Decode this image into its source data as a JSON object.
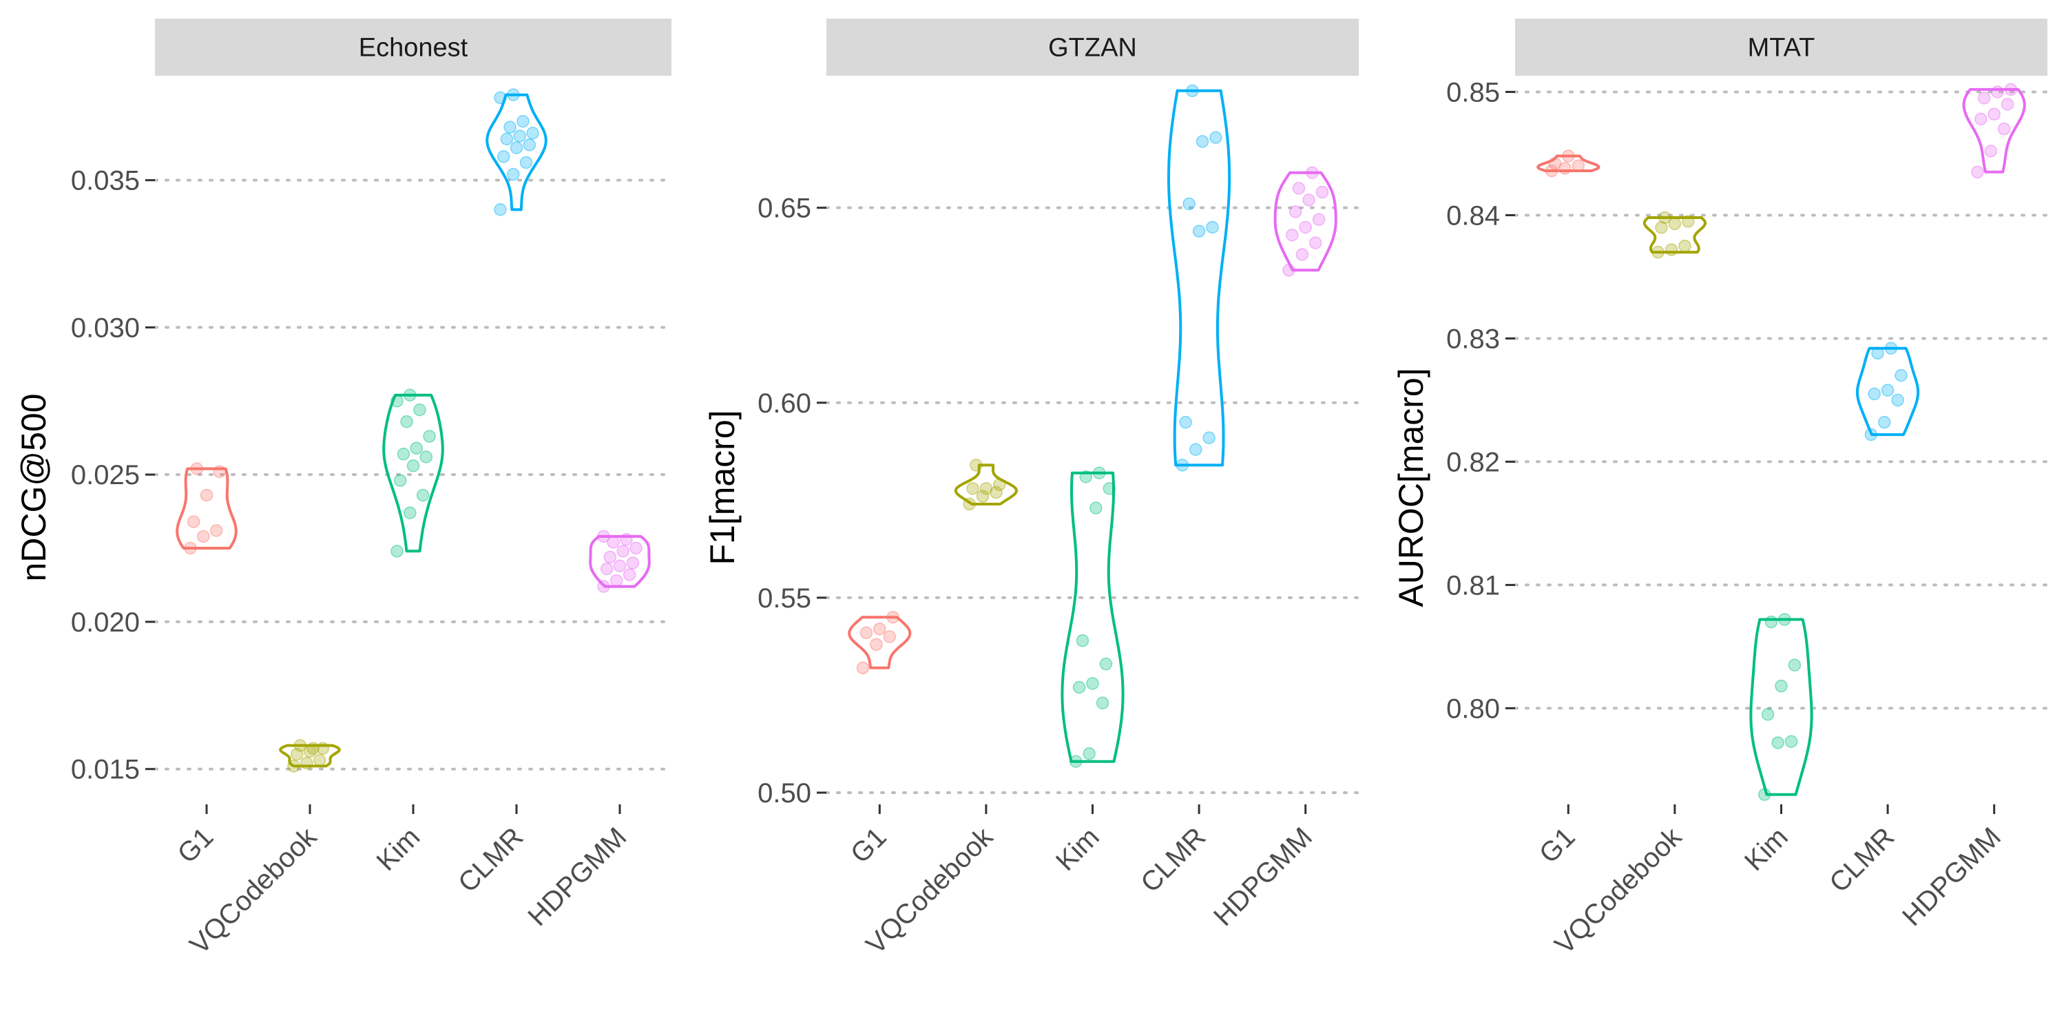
{
  "chart_data": [
    {
      "type": "violin",
      "title": "Echonest",
      "ylabel": "nDCG@500",
      "categories": [
        "G1",
        "VQCodebook",
        "Kim",
        "CLMR",
        "HDPGMM"
      ],
      "ylim": [
        0.0138,
        0.0385
      ],
      "yticks": [
        0.015,
        0.02,
        0.025,
        0.03,
        0.035
      ],
      "ytick_labels": [
        "0.015",
        "0.020",
        "0.025",
        "0.030",
        "0.035"
      ],
      "grid": "horizontal dotted",
      "series": [
        {
          "name": "G1",
          "color": "#F8766D",
          "points": [
            0.0225,
            0.0229,
            0.0231,
            0.0234,
            0.0243,
            0.0251,
            0.0252
          ]
        },
        {
          "name": "VQCodebook",
          "color": "#A3A500",
          "points": [
            0.0151,
            0.0152,
            0.0153,
            0.0155,
            0.0156,
            0.0157,
            0.0158,
            0.0157
          ]
        },
        {
          "name": "Kim",
          "color": "#00BF7D",
          "points": [
            0.0224,
            0.0237,
            0.0243,
            0.0248,
            0.0253,
            0.0256,
            0.0257,
            0.0259,
            0.0263,
            0.0268,
            0.0272,
            0.0275,
            0.0277
          ]
        },
        {
          "name": "CLMR",
          "color": "#00B0F6",
          "points": [
            0.034,
            0.0352,
            0.0356,
            0.0358,
            0.0361,
            0.0362,
            0.0364,
            0.0365,
            0.0366,
            0.0368,
            0.037,
            0.0378,
            0.0379
          ]
        },
        {
          "name": "HDPGMM",
          "color": "#E76BF3",
          "points": [
            0.0212,
            0.0214,
            0.0216,
            0.0218,
            0.0219,
            0.022,
            0.0222,
            0.0224,
            0.0225,
            0.0227,
            0.0228,
            0.0229
          ]
        }
      ]
    },
    {
      "type": "violin",
      "title": "GTZAN",
      "ylabel": "F1[macro]",
      "categories": [
        "G1",
        "VQCodebook",
        "Kim",
        "CLMR",
        "HDPGMM"
      ],
      "ylim": [
        0.497,
        0.6835
      ],
      "yticks": [
        0.5,
        0.55,
        0.6,
        0.65
      ],
      "ytick_labels": [
        "0.50",
        "0.55",
        "0.60",
        "0.65"
      ],
      "grid": "horizontal dotted",
      "series": [
        {
          "name": "G1",
          "color": "#F8766D",
          "points": [
            0.532,
            0.538,
            0.54,
            0.541,
            0.542,
            0.545
          ]
        },
        {
          "name": "VQCodebook",
          "color": "#A3A500",
          "points": [
            0.574,
            0.576,
            0.577,
            0.578,
            0.578,
            0.579,
            0.584
          ]
        },
        {
          "name": "Kim",
          "color": "#00BF7D",
          "points": [
            0.508,
            0.51,
            0.523,
            0.527,
            0.528,
            0.533,
            0.539,
            0.573,
            0.578,
            0.581,
            0.582
          ]
        },
        {
          "name": "CLMR",
          "color": "#00B0F6",
          "points": [
            0.584,
            0.588,
            0.591,
            0.595,
            0.644,
            0.645,
            0.651,
            0.667,
            0.668,
            0.68
          ]
        },
        {
          "name": "HDPGMM",
          "color": "#E76BF3",
          "points": [
            0.634,
            0.638,
            0.641,
            0.643,
            0.645,
            0.647,
            0.649,
            0.652,
            0.654,
            0.655,
            0.659
          ]
        }
      ]
    },
    {
      "type": "violin",
      "title": "MTAT",
      "ylabel": "AUROC[macro]",
      "categories": [
        "G1",
        "VQCodebook",
        "Kim",
        "CLMR",
        "HDPGMM"
      ],
      "ylim": [
        0.7922,
        0.8512
      ],
      "yticks": [
        0.8,
        0.81,
        0.82,
        0.83,
        0.84,
        0.85
      ],
      "ytick_labels": [
        "0.80",
        "0.81",
        "0.82",
        "0.83",
        "0.84",
        "0.85"
      ],
      "grid": "horizontal dotted",
      "series": [
        {
          "name": "G1",
          "color": "#F8766D",
          "points": [
            0.8436,
            0.8438,
            0.844,
            0.8442,
            0.8448
          ]
        },
        {
          "name": "VQCodebook",
          "color": "#A3A500",
          "points": [
            0.837,
            0.8372,
            0.8375,
            0.839,
            0.8393,
            0.8395,
            0.8398
          ]
        },
        {
          "name": "Kim",
          "color": "#00BF7D",
          "points": [
            0.793,
            0.7972,
            0.7973,
            0.7995,
            0.8018,
            0.8035,
            0.807,
            0.8072
          ]
        },
        {
          "name": "CLMR",
          "color": "#00B0F6",
          "points": [
            0.8222,
            0.8232,
            0.825,
            0.8255,
            0.8258,
            0.827,
            0.8288,
            0.8292
          ]
        },
        {
          "name": "HDPGMM",
          "color": "#E76BF3",
          "points": [
            0.8435,
            0.8452,
            0.847,
            0.8478,
            0.8482,
            0.849,
            0.8495,
            0.85,
            0.8502
          ]
        }
      ]
    }
  ]
}
